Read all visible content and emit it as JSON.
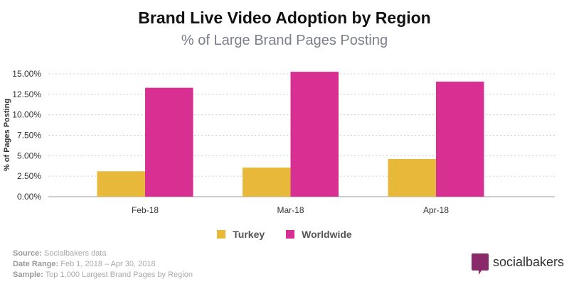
{
  "chart_data": {
    "type": "bar",
    "title": "Brand Live Video Adoption by Region",
    "subtitle": "% of Large Brand Pages Posting",
    "ylabel": "% of Pages Posting",
    "xlabel": "",
    "categories": [
      "Feb-18",
      "Mar-18",
      "Apr-18"
    ],
    "series": [
      {
        "name": "Turkey",
        "values": [
          3.1,
          3.55,
          4.6
        ],
        "color": "#e8b83a"
      },
      {
        "name": "Worldwide",
        "values": [
          13.3,
          15.25,
          14.05
        ],
        "color": "#d82f93"
      }
    ],
    "ylim": [
      0,
      15
    ],
    "yticks": [
      "0.00%",
      "2.50%",
      "5.00%",
      "7.50%",
      "10.00%",
      "12.50%",
      "15.00%"
    ],
    "grid": true,
    "legend": "bottom"
  },
  "footer": {
    "source_label": "Source:",
    "source": "Socialbakers data",
    "date_label": "Date Range:",
    "date": "Feb 1, 2018  – Apr 30, 2018",
    "sample_label": "Sample:",
    "sample": "Top 1,000 Largest Brand Pages by Region"
  },
  "logo": {
    "text": "socialbakers"
  }
}
